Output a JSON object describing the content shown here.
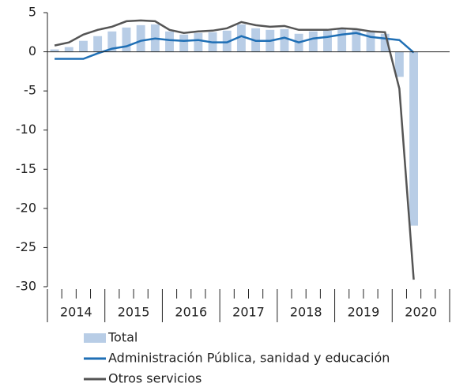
{
  "chart_data": {
    "type": "bar_line",
    "categories": [
      null,
      null,
      null,
      null,
      null,
      null,
      null,
      null,
      null,
      null,
      null,
      null,
      null,
      null,
      null,
      null,
      null,
      null,
      null,
      null,
      null,
      null,
      null,
      null,
      null,
      null,
      null,
      null
    ],
    "groups": [
      "2014",
      "2015",
      "2016",
      "2017",
      "2018",
      "2019",
      "2020"
    ],
    "series": [
      {
        "name": "Total",
        "type": "bar",
        "color": "#b8cde6",
        "values": [
          0.3,
          0.6,
          1.4,
          2.0,
          2.6,
          3.1,
          3.4,
          3.5,
          2.6,
          2.2,
          2.4,
          2.5,
          2.7,
          3.5,
          3.0,
          2.8,
          2.9,
          2.3,
          2.6,
          2.7,
          2.9,
          2.8,
          2.5,
          2.3,
          -3.2,
          -22.2,
          null,
          null
        ]
      },
      {
        "name": "Administración Pública, sanidad y educación",
        "type": "line",
        "color": "#1f6fb5",
        "values": [
          -0.9,
          -0.9,
          -0.9,
          -0.2,
          0.4,
          0.7,
          1.4,
          1.7,
          1.5,
          1.4,
          1.5,
          1.2,
          1.2,
          2.0,
          1.4,
          1.4,
          1.8,
          1.2,
          1.7,
          1.9,
          2.2,
          2.4,
          1.9,
          1.7,
          1.5,
          -0.1,
          null,
          null
        ]
      },
      {
        "name": "Otros servicios",
        "type": "line",
        "color": "#555555",
        "values": [
          0.8,
          1.2,
          2.2,
          2.8,
          3.2,
          3.9,
          4.0,
          3.9,
          2.8,
          2.4,
          2.6,
          2.7,
          3.0,
          3.8,
          3.4,
          3.2,
          3.3,
          2.8,
          2.8,
          2.8,
          3.0,
          2.9,
          2.6,
          2.5,
          -4.7,
          -29.1,
          null,
          null
        ]
      }
    ],
    "ylim": [
      -30,
      5
    ],
    "yticks": [
      5,
      0,
      -5,
      -10,
      -15,
      -20,
      -25,
      -30
    ]
  }
}
